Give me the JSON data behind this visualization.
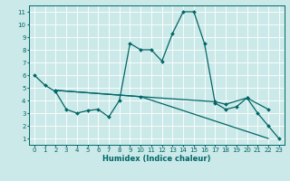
{
  "xlabel": "Humidex (Indice chaleur)",
  "xlim": [
    -0.5,
    23.5
  ],
  "ylim": [
    0.5,
    11.5
  ],
  "xticks": [
    0,
    1,
    2,
    3,
    4,
    5,
    6,
    7,
    8,
    9,
    10,
    11,
    12,
    13,
    14,
    15,
    16,
    17,
    18,
    19,
    20,
    21,
    22,
    23
  ],
  "yticks": [
    1,
    2,
    3,
    4,
    5,
    6,
    7,
    8,
    9,
    10,
    11
  ],
  "bg_color": "#cce9e9",
  "line_color": "#006666",
  "grid_color": "#ffffff",
  "series": [
    {
      "x": [
        0,
        1,
        2,
        3,
        4,
        5,
        6,
        7,
        8,
        9,
        10,
        11,
        12,
        13,
        14,
        15,
        16,
        17,
        18,
        19,
        20,
        21,
        22,
        23
      ],
      "y": [
        6.0,
        5.2,
        4.7,
        3.3,
        3.0,
        3.2,
        3.3,
        2.7,
        4.0,
        8.5,
        8.0,
        8.0,
        7.1,
        9.3,
        11.0,
        11.0,
        8.5,
        3.8,
        3.3,
        3.5,
        4.2,
        3.0,
        2.0,
        1.0
      ],
      "marker": true
    },
    {
      "x": [
        2,
        10,
        17,
        18,
        20,
        22
      ],
      "y": [
        4.8,
        4.3,
        3.9,
        3.7,
        4.2,
        3.3
      ],
      "marker": true
    },
    {
      "x": [
        2,
        10,
        22
      ],
      "y": [
        4.8,
        4.3,
        1.0
      ],
      "marker": false
    }
  ],
  "tick_fontsize": 5.0,
  "xlabel_fontsize": 6.0,
  "linewidth": 0.9,
  "markersize": 2.0
}
